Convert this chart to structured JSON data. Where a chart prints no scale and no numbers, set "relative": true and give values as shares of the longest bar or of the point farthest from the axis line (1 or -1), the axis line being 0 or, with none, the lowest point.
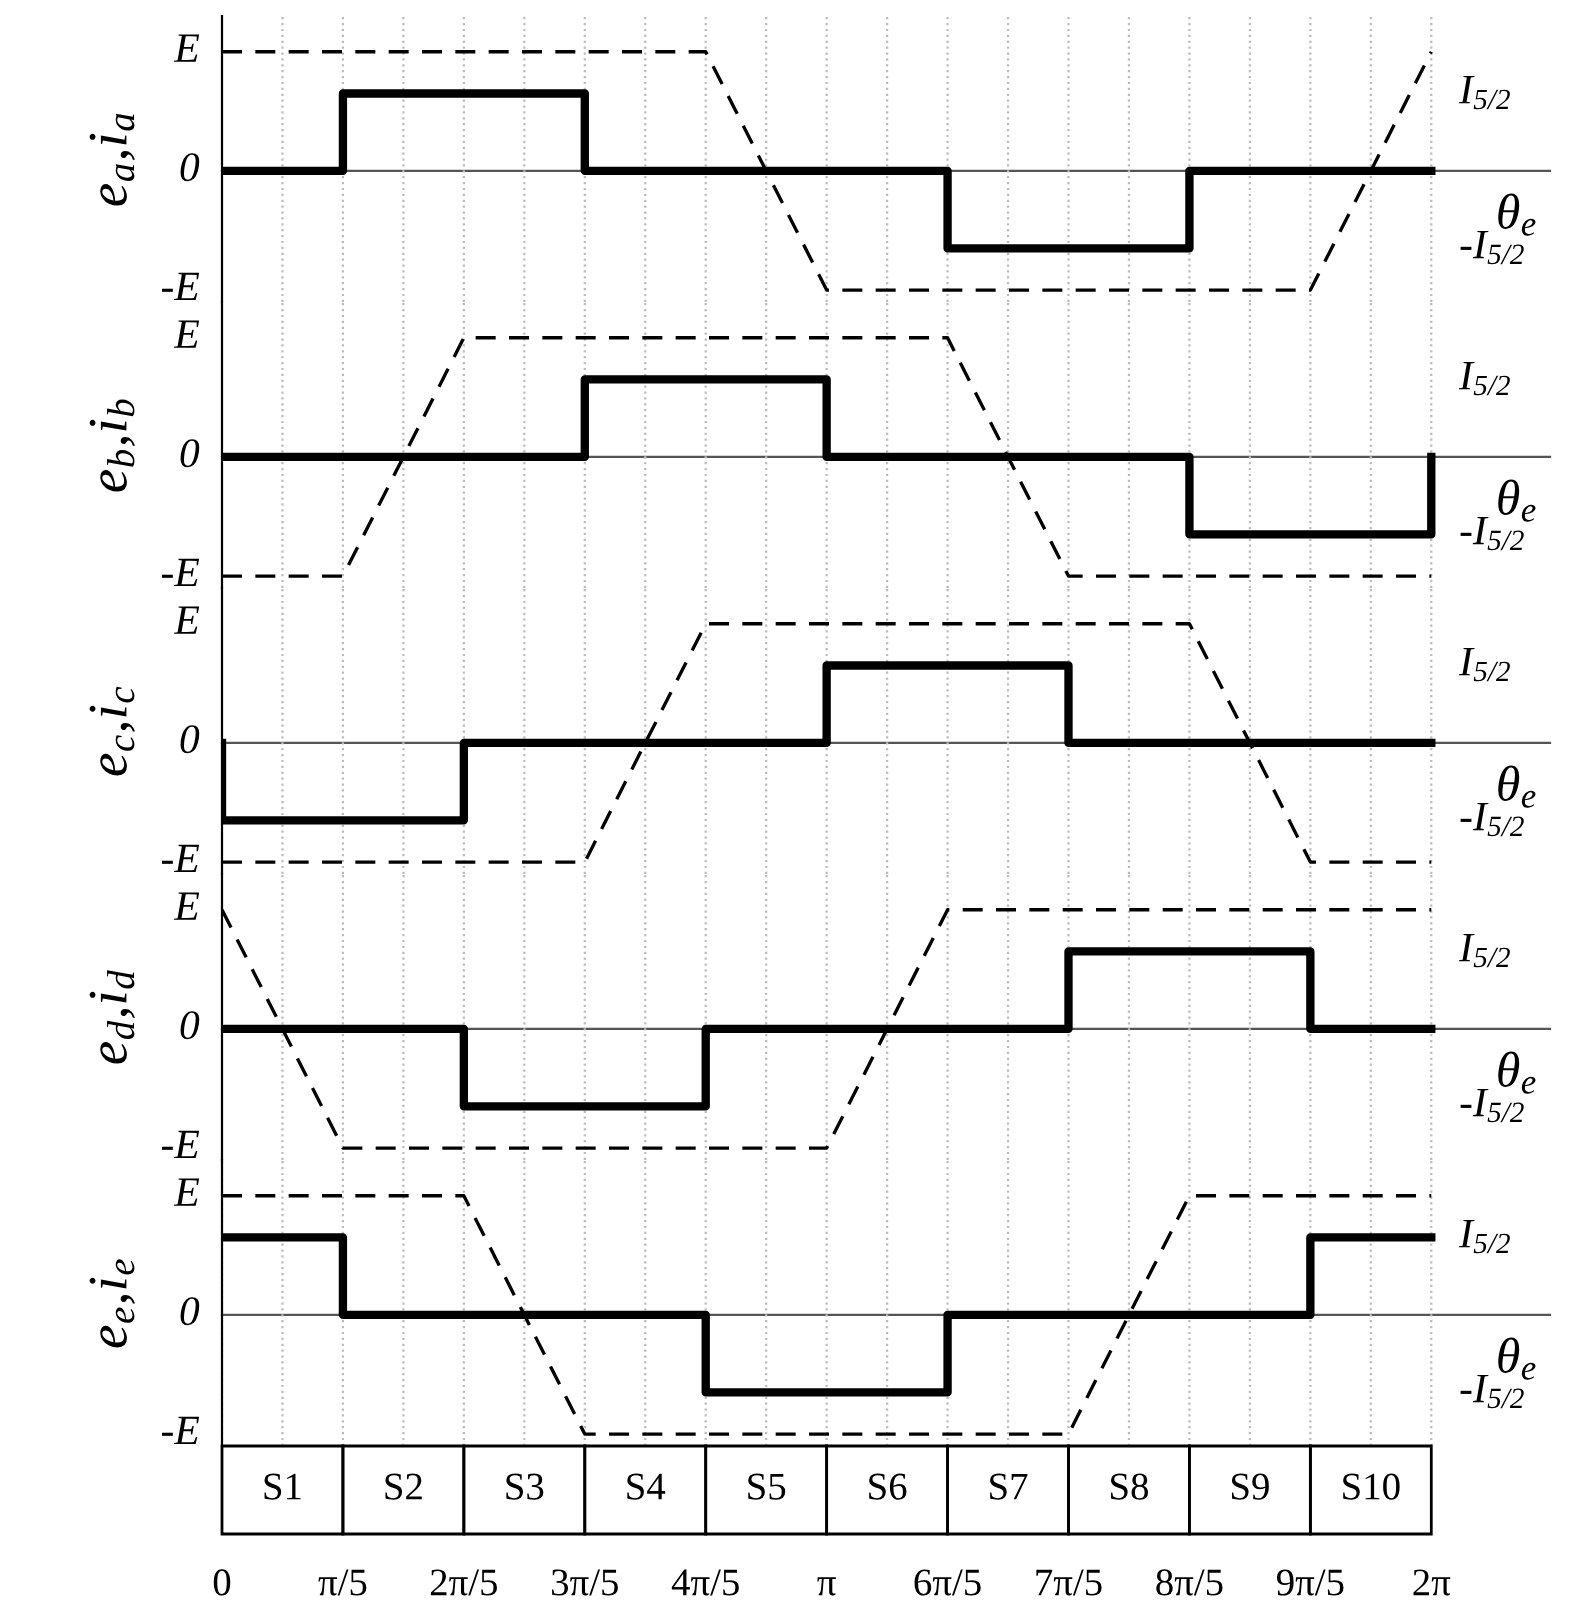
{
  "chart_data": [
    {
      "type": "line",
      "relative": true,
      "ylabel": "e$_{a}$,i$_{a}$",
      "xlabel": "θ$_{e}$",
      "xlim": [
        0,
        6.9
      ],
      "grid": "x",
      "tick_labels": false,
      "xticks": [
        {
          "value": 0.3142,
          "label": null
        },
        {
          "value": 0.6283,
          "label": null
        },
        {
          "value": 0.9425,
          "label": null
        },
        {
          "value": 1.2566,
          "label": null
        },
        {
          "value": 1.5708,
          "label": null
        },
        {
          "value": 1.885,
          "label": null
        },
        {
          "value": 2.1991,
          "label": null
        },
        {
          "value": 2.5133,
          "label": null
        },
        {
          "value": 2.8274,
          "label": null
        },
        {
          "value": 3.1416,
          "label": null
        },
        {
          "value": 3.4558,
          "label": null
        },
        {
          "value": 3.7699,
          "label": null
        },
        {
          "value": 4.0841,
          "label": null
        },
        {
          "value": 4.3982,
          "label": null
        },
        {
          "value": 4.7124,
          "label": null
        },
        {
          "value": 5.0265,
          "label": null
        },
        {
          "value": 5.3407,
          "label": null
        },
        {
          "value": 5.6549,
          "label": null
        },
        {
          "value": 5.969,
          "label": null
        },
        {
          "value": 6.2832,
          "label": null
        }
      ],
      "annotations": [
        "E",
        "0",
        "-E",
        "I$_{5/2}$",
        "-I$_{5/2}$"
      ],
      "series": [
        {
          "color": "#000000",
          "line_style": "dashed",
          "x": [
            0,
            2.5133,
            3.1416,
            5.6549,
            6.2832
          ],
          "values": [
            1,
            1,
            -1,
            -1,
            1
          ]
        },
        {
          "color": "#000000",
          "line_style": "solid",
          "x": [
            0,
            0.6283,
            0.6283,
            1.885,
            1.885,
            3.7699,
            3.7699,
            5.0265,
            5.0265,
            6.2832
          ],
          "values": [
            0,
            0,
            0.65,
            0.65,
            0,
            0,
            -0.65,
            -0.65,
            0,
            0
          ]
        }
      ]
    },
    {
      "type": "line",
      "relative": true,
      "ylabel": "e$_{b}$,i$_{b}$",
      "xlabel": "θ$_{e}$",
      "xlim": [
        0,
        6.9
      ],
      "grid": "x",
      "tick_labels": false,
      "xticks": [
        {
          "value": 0.3142,
          "label": null
        },
        {
          "value": 0.6283,
          "label": null
        },
        {
          "value": 0.9425,
          "label": null
        },
        {
          "value": 1.2566,
          "label": null
        },
        {
          "value": 1.5708,
          "label": null
        },
        {
          "value": 1.885,
          "label": null
        },
        {
          "value": 2.1991,
          "label": null
        },
        {
          "value": 2.5133,
          "label": null
        },
        {
          "value": 2.8274,
          "label": null
        },
        {
          "value": 3.1416,
          "label": null
        },
        {
          "value": 3.4558,
          "label": null
        },
        {
          "value": 3.7699,
          "label": null
        },
        {
          "value": 4.0841,
          "label": null
        },
        {
          "value": 4.3982,
          "label": null
        },
        {
          "value": 4.7124,
          "label": null
        },
        {
          "value": 5.0265,
          "label": null
        },
        {
          "value": 5.3407,
          "label": null
        },
        {
          "value": 5.6549,
          "label": null
        },
        {
          "value": 5.969,
          "label": null
        },
        {
          "value": 6.2832,
          "label": null
        }
      ],
      "annotations": [
        "E",
        "0",
        "-E",
        "I$_{5/2}$",
        "-I$_{5/2}$"
      ],
      "series": [
        {
          "color": "#000000",
          "line_style": "dashed",
          "x": [
            0,
            0.6283,
            1.2566,
            3.7699,
            4.3982,
            6.2832
          ],
          "values": [
            -1,
            -1,
            1,
            1,
            -1,
            -1
          ]
        },
        {
          "color": "#000000",
          "line_style": "solid",
          "x": [
            0,
            1.885,
            1.885,
            3.1416,
            3.1416,
            5.0265,
            5.0265,
            6.2832,
            6.2832
          ],
          "values": [
            0,
            0,
            0.65,
            0.65,
            0,
            0,
            -0.65,
            -0.65,
            0
          ]
        }
      ]
    },
    {
      "type": "line",
      "relative": true,
      "ylabel": "e$_{c}$,i$_{c}$",
      "xlabel": "θ$_{e}$",
      "xlim": [
        0,
        6.9
      ],
      "grid": "x",
      "tick_labels": false,
      "xticks": [
        {
          "value": 0.3142,
          "label": null
        },
        {
          "value": 0.6283,
          "label": null
        },
        {
          "value": 0.9425,
          "label": null
        },
        {
          "value": 1.2566,
          "label": null
        },
        {
          "value": 1.5708,
          "label": null
        },
        {
          "value": 1.885,
          "label": null
        },
        {
          "value": 2.1991,
          "label": null
        },
        {
          "value": 2.5133,
          "label": null
        },
        {
          "value": 2.8274,
          "label": null
        },
        {
          "value": 3.1416,
          "label": null
        },
        {
          "value": 3.4558,
          "label": null
        },
        {
          "value": 3.7699,
          "label": null
        },
        {
          "value": 4.0841,
          "label": null
        },
        {
          "value": 4.3982,
          "label": null
        },
        {
          "value": 4.7124,
          "label": null
        },
        {
          "value": 5.0265,
          "label": null
        },
        {
          "value": 5.3407,
          "label": null
        },
        {
          "value": 5.6549,
          "label": null
        },
        {
          "value": 5.969,
          "label": null
        },
        {
          "value": 6.2832,
          "label": null
        }
      ],
      "annotations": [
        "E",
        "0",
        "-E",
        "I$_{5/2}$",
        "-I$_{5/2}$"
      ],
      "series": [
        {
          "color": "#000000",
          "line_style": "dashed",
          "x": [
            0,
            1.885,
            2.5133,
            5.0265,
            5.6549,
            6.2832
          ],
          "values": [
            -1,
            -1,
            1,
            1,
            -1,
            -1
          ]
        },
        {
          "color": "#000000",
          "line_style": "solid",
          "x": [
            0,
            0,
            1.2566,
            1.2566,
            3.1416,
            3.1416,
            4.3982,
            4.3982,
            6.2832
          ],
          "values": [
            0,
            -0.65,
            -0.65,
            0,
            0,
            0.65,
            0.65,
            0,
            0
          ]
        }
      ]
    },
    {
      "type": "line",
      "relative": true,
      "ylabel": "e$_{d}$,i$_{d}$",
      "xlabel": "θ$_{e}$",
      "xlim": [
        0,
        6.9
      ],
      "grid": "x",
      "tick_labels": false,
      "xticks": [
        {
          "value": 0.3142,
          "label": null
        },
        {
          "value": 0.6283,
          "label": null
        },
        {
          "value": 0.9425,
          "label": null
        },
        {
          "value": 1.2566,
          "label": null
        },
        {
          "value": 1.5708,
          "label": null
        },
        {
          "value": 1.885,
          "label": null
        },
        {
          "value": 2.1991,
          "label": null
        },
        {
          "value": 2.5133,
          "label": null
        },
        {
          "value": 2.8274,
          "label": null
        },
        {
          "value": 3.1416,
          "label": null
        },
        {
          "value": 3.4558,
          "label": null
        },
        {
          "value": 3.7699,
          "label": null
        },
        {
          "value": 4.0841,
          "label": null
        },
        {
          "value": 4.3982,
          "label": null
        },
        {
          "value": 4.7124,
          "label": null
        },
        {
          "value": 5.0265,
          "label": null
        },
        {
          "value": 5.3407,
          "label": null
        },
        {
          "value": 5.6549,
          "label": null
        },
        {
          "value": 5.969,
          "label": null
        },
        {
          "value": 6.2832,
          "label": null
        }
      ],
      "annotations": [
        "E",
        "0",
        "-E",
        "I$_{5/2}$",
        "-I$_{5/2}$"
      ],
      "series": [
        {
          "color": "#000000",
          "line_style": "dashed",
          "x": [
            0,
            0.6283,
            3.1416,
            3.7699,
            6.2832
          ],
          "values": [
            1,
            -1,
            -1,
            1,
            1
          ]
        },
        {
          "color": "#000000",
          "line_style": "solid",
          "x": [
            0,
            1.2566,
            1.2566,
            2.5133,
            2.5133,
            4.3982,
            4.3982,
            5.6549,
            5.6549,
            6.2832
          ],
          "values": [
            0,
            0,
            -0.65,
            -0.65,
            0,
            0,
            0.65,
            0.65,
            0,
            0
          ]
        }
      ]
    },
    {
      "type": "line",
      "relative": true,
      "ylabel": "e$_{e}$,i$_{e}$",
      "xlabel": "θ$_{e}$",
      "xlim": [
        0,
        6.9
      ],
      "grid": "x",
      "tick_labels": "x",
      "xticks": [
        0,
        {
          "value": 0.3142,
          "label": null
        },
        {
          "value": 0.6283,
          "label": "π/5"
        },
        {
          "value": 0.9425,
          "label": null
        },
        {
          "value": 1.2566,
          "label": "2π/5"
        },
        {
          "value": 1.5708,
          "label": null
        },
        {
          "value": 1.885,
          "label": "3π/5"
        },
        {
          "value": 2.1991,
          "label": null
        },
        {
          "value": 2.5133,
          "label": "4π/5"
        },
        {
          "value": 2.8274,
          "label": null
        },
        {
          "value": 3.1416,
          "label": "π"
        },
        {
          "value": 3.4558,
          "label": null
        },
        {
          "value": 3.7699,
          "label": "6π/5"
        },
        {
          "value": 4.0841,
          "label": null
        },
        {
          "value": 4.3982,
          "label": "7π/5"
        },
        {
          "value": 4.7124,
          "label": null
        },
        {
          "value": 5.0265,
          "label": "8π/5"
        },
        {
          "value": 5.3407,
          "label": null
        },
        {
          "value": 5.6549,
          "label": "9π/5"
        },
        {
          "value": 5.969,
          "label": null
        },
        {
          "value": 6.2832,
          "label": "2π"
        }
      ],
      "annotations": [
        "E",
        "0",
        "-E",
        "I$_{5/2}$",
        "-I$_{5/2}$",
        "S1",
        "S2",
        "S3",
        "S4",
        "S5",
        "S6",
        "S7",
        "S8",
        "S9",
        "S10"
      ],
      "series": [
        {
          "color": "#000000",
          "line_style": "dashed",
          "x": [
            0,
            1.2566,
            1.885,
            4.3982,
            5.0265,
            6.2832
          ],
          "values": [
            1,
            1,
            -1,
            -1,
            1,
            1
          ]
        },
        {
          "color": "#000000",
          "line_style": "solid",
          "x": [
            0,
            0.6283,
            0.6283,
            2.5133,
            2.5133,
            3.7699,
            3.7699,
            5.6549,
            5.6549,
            6.2832
          ],
          "values": [
            0.65,
            0.65,
            0,
            0,
            -0.65,
            -0.65,
            0,
            0,
            0.65,
            0.65
          ]
        }
      ]
    }
  ]
}
